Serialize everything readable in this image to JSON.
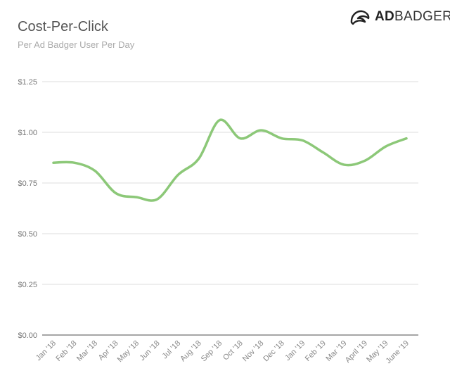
{
  "header": {
    "title": "Cost-Per-Click",
    "subtitle": "Per Ad Badger User Per Day"
  },
  "logo": {
    "bold": "AD",
    "rest": "BADGER"
  },
  "chart_data": {
    "type": "line",
    "title": "Cost-Per-Click",
    "subtitle": "Per Ad Badger User Per Day",
    "xlabel": "",
    "ylabel": "",
    "ylim": [
      0,
      1.25
    ],
    "yticks": [
      0,
      0.25,
      0.5,
      0.75,
      1.0,
      1.25
    ],
    "ytick_labels": [
      "$0.00",
      "$0.25",
      "$0.50",
      "$0.75",
      "$1.00",
      "$1.25"
    ],
    "grid": true,
    "categories": [
      "Jan '18",
      "Feb '18",
      "Mar '18",
      "Apr '18",
      "May '18",
      "Jun '18",
      "Jul '18",
      "Aug '18",
      "Sep '18",
      "Oct '18",
      "Nov '18",
      "Dec '18",
      "Jan '19",
      "Feb '19",
      "Mar '19",
      "April '19",
      "May '19",
      "June '19"
    ],
    "series": [
      {
        "name": "Cost-Per-Click",
        "color": "#8cc878",
        "values": [
          0.85,
          0.85,
          0.81,
          0.7,
          0.68,
          0.67,
          0.79,
          0.87,
          1.06,
          0.97,
          1.01,
          0.97,
          0.96,
          0.9,
          0.84,
          0.86,
          0.93,
          0.97
        ]
      }
    ]
  }
}
